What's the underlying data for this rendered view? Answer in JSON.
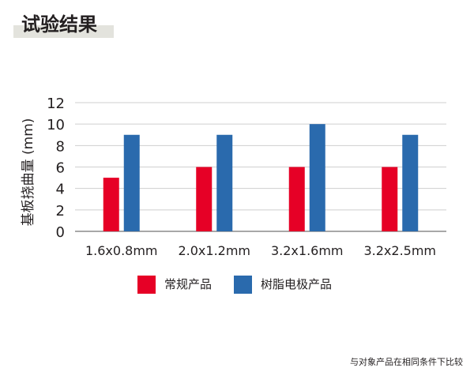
{
  "page": {
    "title": "试验结果",
    "footnote": "与对象产品在相同条件下比较"
  },
  "chart_data": {
    "type": "bar",
    "categories": [
      "1.6x0.8mm",
      "2.0x1.2mm",
      "3.2x1.6mm",
      "3.2x2.5mm"
    ],
    "series": [
      {
        "name": "常规产品",
        "color": "#e60026",
        "values": [
          5,
          6,
          6,
          6
        ]
      },
      {
        "name": "树脂电极产品",
        "color": "#2a6aad",
        "values": [
          9,
          9,
          10,
          9
        ]
      }
    ],
    "ylabel": "基板挠曲量 (mm)",
    "xlabel": "",
    "ylim": [
      0,
      12
    ],
    "yticks": [
      0,
      2,
      4,
      6,
      8,
      10,
      12
    ],
    "grid": true,
    "legend_position": "bottom-center"
  }
}
